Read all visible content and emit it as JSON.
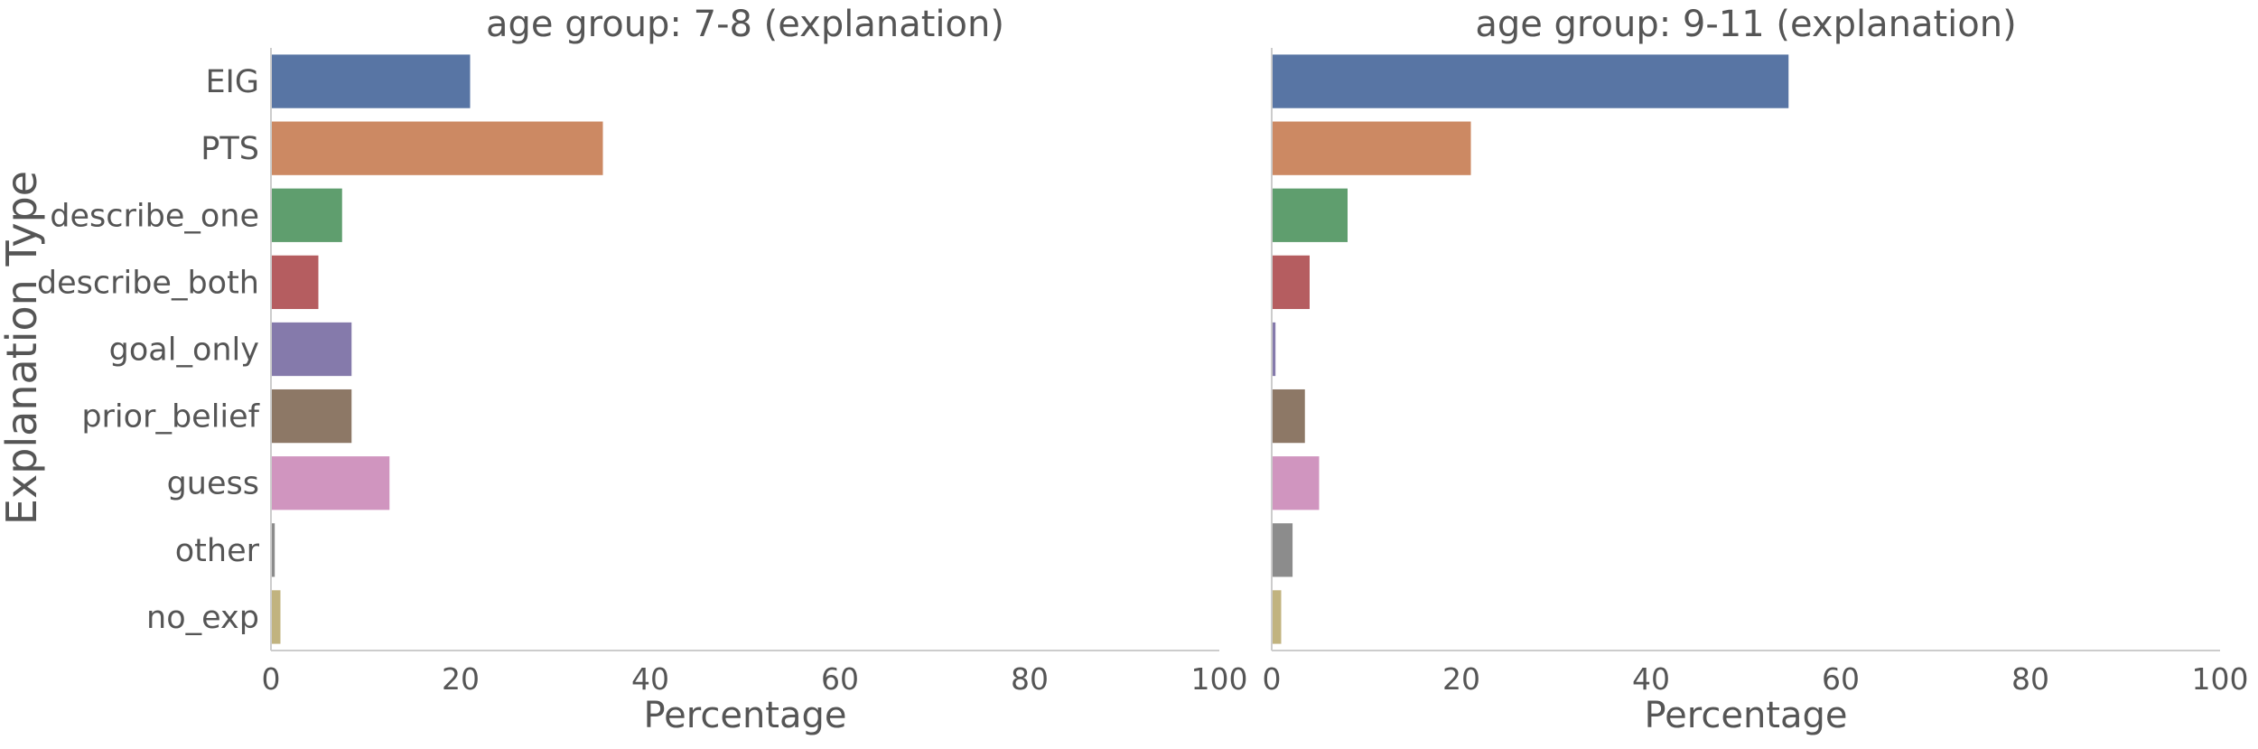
{
  "chart_data": {
    "type": "bar",
    "orientation": "horizontal",
    "ylabel": "Explanation Type",
    "xlabel": "Percentage",
    "xlim": [
      0,
      100
    ],
    "x_ticks": [
      0,
      20,
      40,
      60,
      80,
      100
    ],
    "grid": false,
    "legend": "none",
    "categories": [
      "EIG",
      "PTS",
      "describe_one",
      "describe_both",
      "goal_only",
      "prior_belief",
      "guess",
      "other",
      "no_exp"
    ],
    "colors": [
      "#5875a4",
      "#cc8963",
      "#5f9e6e",
      "#b55d60",
      "#857aab",
      "#8d7866",
      "#d095bf",
      "#8c8c8c",
      "#c1b37f"
    ],
    "panels": [
      {
        "title": "age group: 7-8 (explanation)",
        "values": [
          21,
          35,
          7.5,
          5,
          8.5,
          8.5,
          12.5,
          0.4,
          1
        ]
      },
      {
        "title": "age group: 9-11 (explanation)",
        "values": [
          54.5,
          21,
          8,
          4,
          0.4,
          3.5,
          5,
          2.2,
          1
        ]
      }
    ]
  }
}
